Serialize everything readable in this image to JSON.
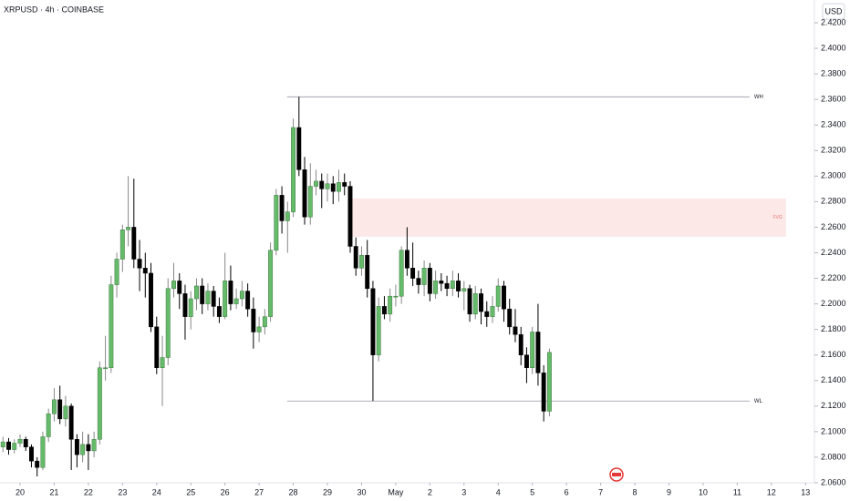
{
  "chart_data": {
    "type": "candlestick",
    "title": "XRPUSD · 4h · COINBASE",
    "currency": "USD",
    "up_color": "#66bb6a",
    "down_color": "#000000",
    "x": [
      -0.5,
      -0.333,
      -0.167,
      0,
      0.167,
      0.333,
      0.5,
      0.667,
      0.833,
      1,
      1.167,
      1.333,
      1.5,
      1.667,
      1.833,
      2,
      2.167,
      2.333,
      2.5,
      2.667,
      2.833,
      3,
      3.167,
      3.333,
      3.5,
      3.667,
      3.833,
      4,
      4.167,
      4.333,
      4.5,
      4.667,
      4.833,
      5,
      5.167,
      5.333,
      5.5,
      5.667,
      5.833,
      6,
      6.167,
      6.333,
      6.5,
      6.667,
      6.833,
      7,
      7.167,
      7.333,
      7.5,
      7.667,
      7.833,
      8,
      8.167,
      8.333,
      8.5,
      8.667,
      8.833,
      9,
      9.167,
      9.333,
      9.5,
      9.667,
      9.833,
      10,
      10.167,
      10.333,
      10.5,
      10.667,
      10.833,
      11,
      11.167,
      11.333,
      11.5,
      11.667,
      11.833,
      12,
      12.167,
      12.333,
      12.5,
      12.667,
      12.833,
      13,
      13.167,
      13.333,
      13.5,
      13.667,
      13.833,
      14,
      14.167,
      14.333,
      14.5,
      14.667,
      14.833,
      15,
      15.167,
      15.333,
      15.5
    ],
    "open": [
      2.088,
      2.092,
      2.086,
      2.091,
      2.094,
      2.088,
      2.077,
      2.072,
      2.096,
      2.114,
      2.125,
      2.11,
      2.12,
      2.094,
      2.082,
      2.09,
      2.085,
      2.094,
      2.15,
      2.15,
      2.215,
      2.235,
      2.258,
      2.26,
      2.235,
      2.228,
      2.224,
      2.182,
      2.15,
      2.158,
      2.212,
      2.218,
      2.208,
      2.19,
      2.204,
      2.214,
      2.2,
      2.21,
      2.198,
      2.19,
      2.218,
      2.2,
      2.204,
      2.21,
      2.196,
      2.178,
      2.182,
      2.19,
      2.242,
      2.285,
      2.265,
      2.272,
      2.338,
      2.305,
      2.268,
      2.292,
      2.296,
      2.29,
      2.294,
      2.288,
      2.295,
      2.292,
      2.245,
      2.228,
      2.238,
      2.212,
      2.16,
      2.198,
      2.192,
      2.206,
      2.206,
      2.242,
      2.228,
      2.22,
      2.215,
      2.228,
      2.208,
      2.218,
      2.216,
      2.212,
      2.218,
      2.21,
      2.212,
      2.192,
      2.208,
      2.194,
      2.19,
      2.198,
      2.214,
      2.196,
      2.182,
      2.176,
      2.16,
      2.15,
      2.178,
      2.146,
      2.116
    ],
    "high": [
      2.096,
      2.095,
      2.094,
      2.098,
      2.096,
      2.09,
      2.08,
      2.1,
      2.118,
      2.134,
      2.136,
      2.128,
      2.122,
      2.098,
      2.1,
      2.098,
      2.1,
      2.155,
      2.175,
      2.222,
      2.24,
      2.262,
      2.3,
      2.298,
      2.25,
      2.24,
      2.232,
      2.19,
      2.175,
      2.22,
      2.232,
      2.224,
      2.215,
      2.21,
      2.22,
      2.22,
      2.216,
      2.214,
      2.205,
      2.24,
      2.23,
      2.212,
      2.218,
      2.216,
      2.205,
      2.19,
      2.196,
      2.248,
      2.29,
      2.292,
      2.28,
      2.345,
      2.362,
      2.315,
      2.31,
      2.305,
      2.302,
      2.302,
      2.3,
      2.305,
      2.302,
      2.296,
      2.252,
      2.245,
      2.25,
      2.218,
      2.205,
      2.206,
      2.212,
      2.215,
      2.245,
      2.26,
      2.248,
      2.226,
      2.234,
      2.232,
      2.226,
      2.224,
      2.222,
      2.226,
      2.224,
      2.218,
      2.215,
      2.214,
      2.212,
      2.202,
      2.206,
      2.22,
      2.218,
      2.204,
      2.196,
      2.182,
      2.166,
      2.182,
      2.2,
      2.152,
      2.165
    ],
    "low": [
      2.084,
      2.082,
      2.083,
      2.088,
      2.085,
      2.072,
      2.065,
      2.07,
      2.092,
      2.108,
      2.106,
      2.104,
      2.07,
      2.072,
      2.076,
      2.07,
      2.08,
      2.09,
      2.14,
      2.146,
      2.205,
      2.225,
      2.245,
      2.228,
      2.21,
      2.205,
      2.178,
      2.145,
      2.12,
      2.152,
      2.205,
      2.196,
      2.172,
      2.18,
      2.195,
      2.192,
      2.195,
      2.19,
      2.185,
      2.188,
      2.195,
      2.196,
      2.198,
      2.19,
      2.165,
      2.17,
      2.176,
      2.186,
      2.238,
      2.255,
      2.24,
      2.268,
      2.3,
      2.262,
      2.262,
      2.285,
      2.275,
      2.28,
      2.278,
      2.28,
      2.285,
      2.24,
      2.222,
      2.222,
      2.205,
      2.124,
      2.155,
      2.188,
      2.186,
      2.198,
      2.2,
      2.222,
      2.214,
      2.208,
      2.206,
      2.202,
      2.204,
      2.21,
      2.206,
      2.206,
      2.205,
      2.195,
      2.186,
      2.188,
      2.184,
      2.182,
      2.185,
      2.194,
      2.186,
      2.176,
      2.17,
      2.152,
      2.138,
      2.145,
      2.136,
      2.108,
      2.112
    ],
    "close": [
      2.092,
      2.086,
      2.091,
      2.094,
      2.088,
      2.077,
      2.072,
      2.096,
      2.114,
      2.125,
      2.11,
      2.12,
      2.094,
      2.082,
      2.09,
      2.085,
      2.094,
      2.15,
      2.15,
      2.215,
      2.235,
      2.258,
      2.26,
      2.235,
      2.228,
      2.224,
      2.182,
      2.15,
      2.158,
      2.212,
      2.218,
      2.208,
      2.19,
      2.204,
      2.214,
      2.2,
      2.21,
      2.198,
      2.19,
      2.218,
      2.2,
      2.204,
      2.21,
      2.196,
      2.178,
      2.182,
      2.19,
      2.242,
      2.285,
      2.265,
      2.272,
      2.338,
      2.305,
      2.268,
      2.292,
      2.296,
      2.29,
      2.294,
      2.288,
      2.295,
      2.292,
      2.245,
      2.228,
      2.238,
      2.212,
      2.16,
      2.198,
      2.192,
      2.206,
      2.206,
      2.242,
      2.228,
      2.22,
      2.215,
      2.228,
      2.208,
      2.218,
      2.216,
      2.212,
      2.218,
      2.21,
      2.212,
      2.192,
      2.208,
      2.194,
      2.19,
      2.198,
      2.214,
      2.196,
      2.182,
      2.176,
      2.16,
      2.15,
      2.178,
      2.146,
      2.116,
      2.162
    ],
    "xlim": [
      -0.587,
      23.26
    ],
    "ylim": [
      2.06,
      2.4378
    ],
    "xticks": [
      {
        "value": 0,
        "label": "20"
      },
      {
        "value": 1,
        "label": "21"
      },
      {
        "value": 2,
        "label": "22"
      },
      {
        "value": 3,
        "label": "23"
      },
      {
        "value": 4,
        "label": "24"
      },
      {
        "value": 5,
        "label": "25"
      },
      {
        "value": 6,
        "label": "26"
      },
      {
        "value": 7,
        "label": "27"
      },
      {
        "value": 8,
        "label": "28"
      },
      {
        "value": 9,
        "label": "29"
      },
      {
        "value": 10,
        "label": "30"
      },
      {
        "value": 11,
        "label": "May"
      },
      {
        "value": 12,
        "label": "2"
      },
      {
        "value": 13,
        "label": "3"
      },
      {
        "value": 14,
        "label": "4"
      },
      {
        "value": 15,
        "label": "5"
      },
      {
        "value": 16,
        "label": "6"
      },
      {
        "value": 17,
        "label": "7"
      },
      {
        "value": 18,
        "label": "8"
      },
      {
        "value": 19,
        "label": "9"
      },
      {
        "value": 20,
        "label": "10"
      },
      {
        "value": 21,
        "label": "11"
      },
      {
        "value": 22,
        "label": "12"
      },
      {
        "value": 23,
        "label": "13"
      }
    ],
    "yticks": [
      {
        "value": 2.06,
        "label": "2.0600"
      },
      {
        "value": 2.08,
        "label": "2.0800"
      },
      {
        "value": 2.1,
        "label": "2.1000"
      },
      {
        "value": 2.12,
        "label": "2.1200"
      },
      {
        "value": 2.14,
        "label": "2.1400"
      },
      {
        "value": 2.16,
        "label": "2.1600"
      },
      {
        "value": 2.18,
        "label": "2.1800"
      },
      {
        "value": 2.2,
        "label": "2.2000"
      },
      {
        "value": 2.22,
        "label": "2.2200"
      },
      {
        "value": 2.24,
        "label": "2.2400"
      },
      {
        "value": 2.26,
        "label": "2.2600"
      },
      {
        "value": 2.28,
        "label": "2.2800"
      },
      {
        "value": 2.3,
        "label": "2.3000"
      },
      {
        "value": 2.32,
        "label": "2.3200"
      },
      {
        "value": 2.34,
        "label": "2.3400"
      },
      {
        "value": 2.36,
        "label": "2.3600"
      },
      {
        "value": 2.38,
        "label": "2.3800"
      },
      {
        "value": 2.4,
        "label": "2.4000"
      },
      {
        "value": 2.42,
        "label": "2.4200"
      }
    ],
    "levels": [
      {
        "label": "WH",
        "value": 2.362,
        "x": [
          7.82,
          21.36
        ]
      },
      {
        "label": "WL",
        "value": 2.124,
        "x": [
          7.82,
          21.36
        ]
      }
    ],
    "zones": [
      {
        "label": "FVG",
        "y": [
          2.2525,
          2.2825
        ],
        "x": [
          9.72,
          22.43
        ],
        "color": "#fde8e8"
      }
    ]
  }
}
